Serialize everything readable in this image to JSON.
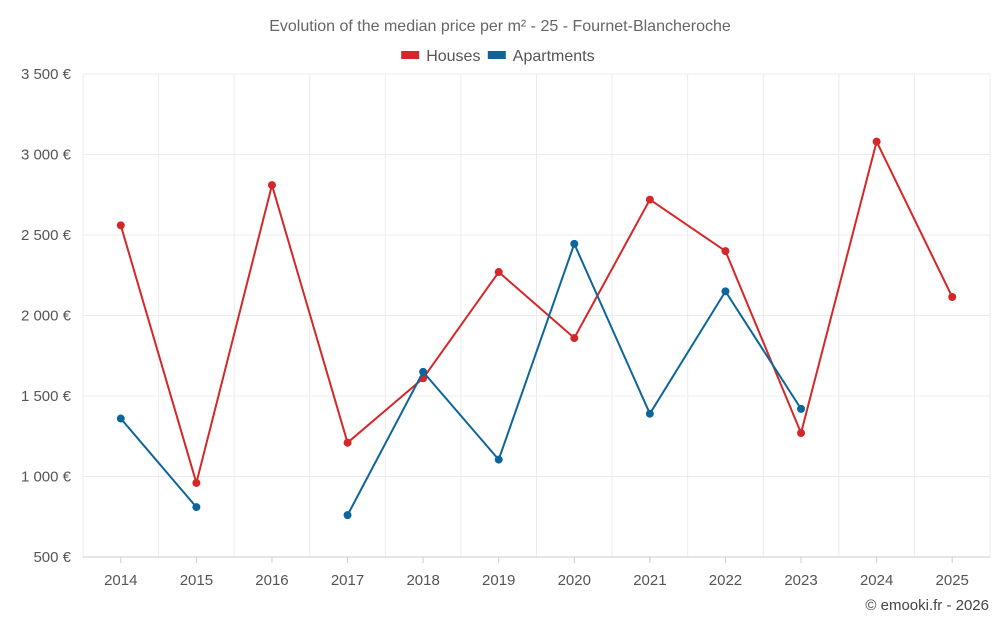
{
  "chart_data": {
    "type": "line",
    "title": "Evolution of the median price per m² - 25 - Fournet-Blancheroche",
    "categories": [
      "2014",
      "2015",
      "2016",
      "2017",
      "2018",
      "2019",
      "2020",
      "2021",
      "2022",
      "2023",
      "2024",
      "2025"
    ],
    "yticks": [
      "500 €",
      "1 000 €",
      "1 500 €",
      "2 000 €",
      "2 500 €",
      "3 000 €",
      "3 500 €"
    ],
    "ylim": [
      500,
      3500
    ],
    "grid": true,
    "legend_position": "top-center",
    "series": [
      {
        "name": "Houses",
        "color": "#d62728",
        "values": [
          2560,
          960,
          2810,
          1210,
          1610,
          2270,
          1860,
          2720,
          2400,
          1270,
          3080,
          2115
        ]
      },
      {
        "name": "Apartments",
        "color": "#0e6698",
        "values": [
          1360,
          810,
          null,
          760,
          1650,
          1105,
          2445,
          1390,
          2150,
          1420,
          null,
          null
        ]
      }
    ],
    "footer": "© emooki.fr - 2026"
  }
}
